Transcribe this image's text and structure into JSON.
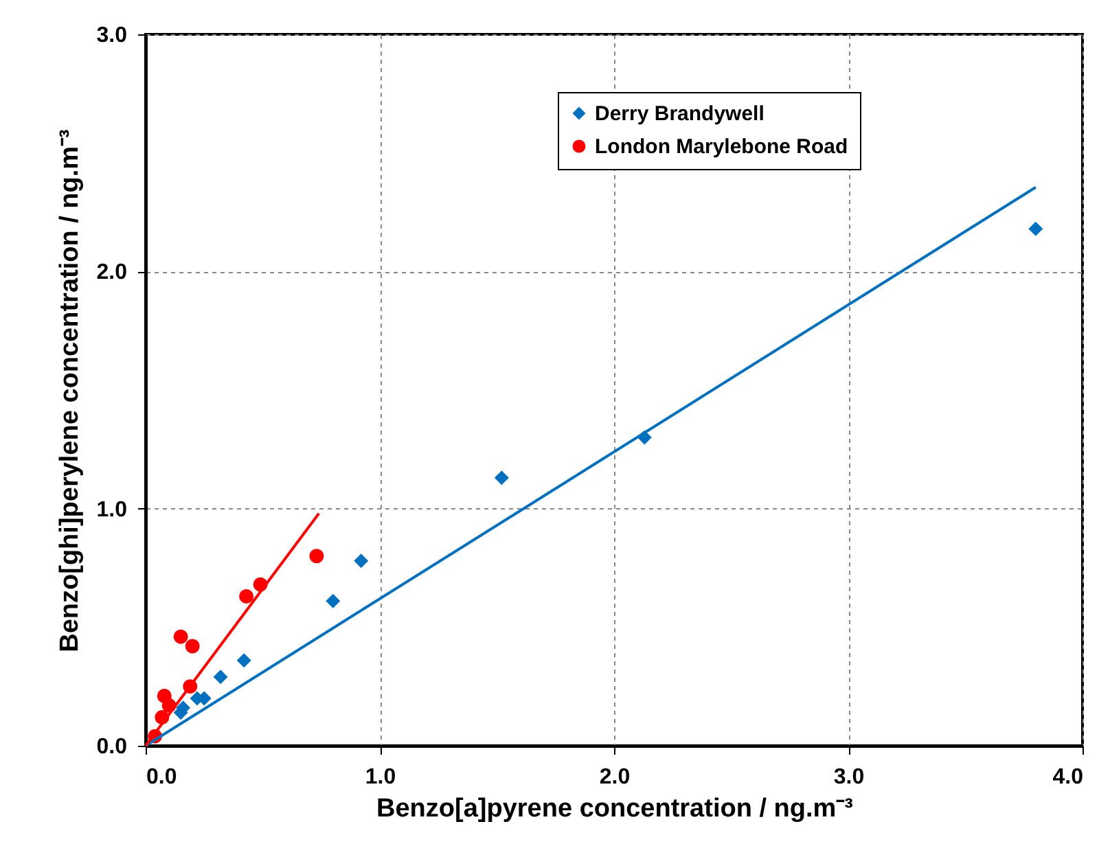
{
  "chart_data": {
    "type": "scatter",
    "xlabel": "Benzo[a]pyrene concentration / ng.m⁻³",
    "ylabel": "Benzo[ghi]perylene concentration / ng.m⁻³",
    "xlim": [
      0,
      4
    ],
    "xticks": [
      {
        "value": 0,
        "label": "0.0"
      },
      {
        "value": 1,
        "label": "1.0"
      },
      {
        "value": 2,
        "label": "2.0"
      },
      {
        "value": 3,
        "label": "3.0"
      },
      {
        "value": 4,
        "label": "4.0"
      }
    ],
    "ylim": [
      0,
      3
    ],
    "yticks": [
      {
        "value": 0,
        "label": "0.0"
      },
      {
        "value": 1,
        "label": "1.0"
      },
      {
        "value": 2,
        "label": "2.0"
      },
      {
        "value": 3,
        "label": "3.0"
      }
    ],
    "grid": true,
    "legend": "top right",
    "series": [
      {
        "name": "Derry Brandywell",
        "color": "#0070c0",
        "marker": "diamond",
        "x": [
          0.15,
          0.16,
          0.22,
          0.25,
          0.32,
          0.42,
          0.8,
          0.92,
          1.52,
          2.13,
          3.8
        ],
        "values": [
          0.14,
          0.16,
          0.2,
          0.2,
          0.29,
          0.36,
          0.61,
          0.78,
          1.13,
          1.3,
          2.18
        ]
      },
      {
        "name": "London Marylebone Road",
        "color": "#ff0000",
        "marker": "circle",
        "x": [
          0.04,
          0.07,
          0.08,
          0.1,
          0.15,
          0.19,
          0.2,
          0.43,
          0.49,
          0.73
        ],
        "values": [
          0.04,
          0.12,
          0.21,
          0.17,
          0.46,
          0.25,
          0.42,
          0.63,
          0.68,
          0.8
        ]
      },
      {
        "type": "line",
        "color": "#0070c0",
        "x": [
          0,
          3.8
        ],
        "values": [
          0,
          2.355
        ]
      },
      {
        "type": "line",
        "color": "#ff0000",
        "x": [
          0,
          0.74
        ],
        "values": [
          0,
          0.98
        ]
      }
    ]
  }
}
